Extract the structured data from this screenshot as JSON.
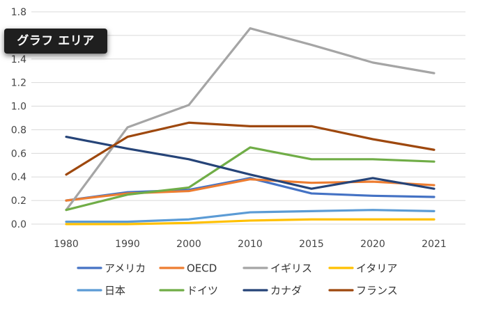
{
  "tooltip": {
    "label": "グラフ エリア"
  },
  "chart_data": {
    "type": "line",
    "categories": [
      "1980",
      "1990",
      "2000",
      "2010",
      "2015",
      "2020",
      "2021"
    ],
    "ylim": [
      0,
      1.8
    ],
    "yticks": [
      "0.0",
      "0.2",
      "0.4",
      "0.6",
      "0.8",
      "1.0",
      "1.2",
      "1.4",
      "1.6",
      "1.8"
    ],
    "grid": "horizontal",
    "legend_position": "bottom",
    "series": [
      {
        "name": "アメリカ",
        "color": "#4472c4",
        "values": [
          0.2,
          0.27,
          0.29,
          0.39,
          0.26,
          0.24,
          0.23
        ]
      },
      {
        "name": "OECD",
        "color": "#ed7d31",
        "values": [
          0.2,
          0.26,
          0.28,
          0.38,
          0.35,
          0.36,
          0.33
        ]
      },
      {
        "name": "イギリス",
        "color": "#a5a5a5",
        "values": [
          0.12,
          0.82,
          1.01,
          1.66,
          1.52,
          1.37,
          1.28
        ]
      },
      {
        "name": "イタリア",
        "color": "#ffc000",
        "values": [
          0.0,
          0.0,
          0.01,
          0.03,
          0.04,
          0.04,
          0.04
        ]
      },
      {
        "name": "日本",
        "color": "#5b9bd5",
        "values": [
          0.02,
          0.02,
          0.04,
          0.1,
          0.11,
          0.12,
          0.11
        ]
      },
      {
        "name": "ドイツ",
        "color": "#70ad47",
        "values": [
          0.12,
          0.25,
          0.31,
          0.65,
          0.55,
          0.55,
          0.53
        ]
      },
      {
        "name": "カナダ",
        "color": "#264478",
        "values": [
          0.74,
          0.64,
          0.55,
          0.42,
          0.3,
          0.39,
          0.3
        ]
      },
      {
        "name": "フランス",
        "color": "#9e480e",
        "values": [
          0.42,
          0.74,
          0.86,
          0.83,
          0.83,
          0.72,
          0.63
        ]
      }
    ]
  }
}
